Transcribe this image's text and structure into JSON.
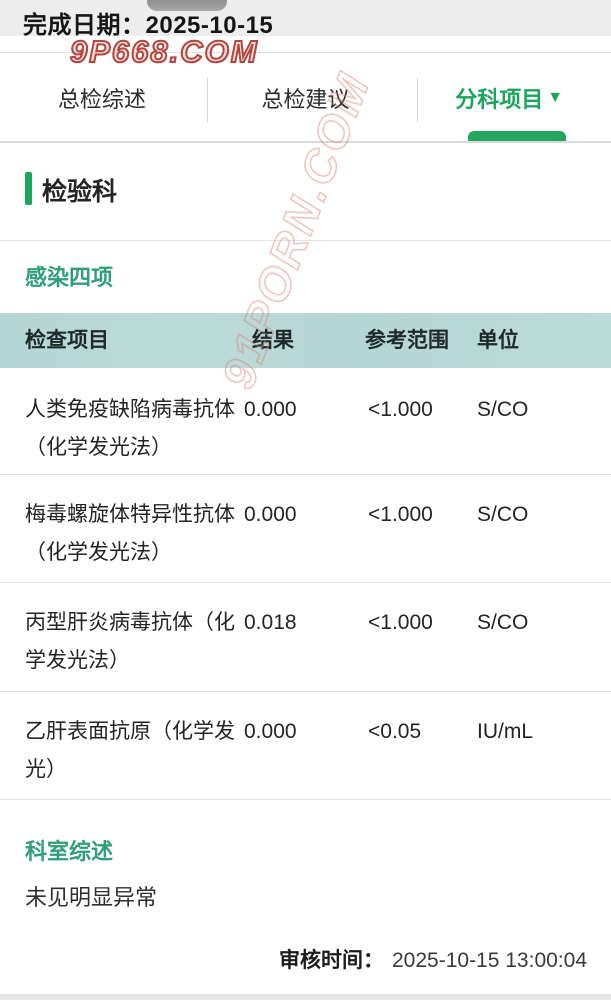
{
  "topbar": {
    "label": "完成日期：",
    "date": "2025-10-15"
  },
  "watermarks": {
    "top": "9P668.COM",
    "diagonal": "91PORN.COM"
  },
  "tabs": [
    {
      "label": "总检综述",
      "active": false
    },
    {
      "label": "总检建议",
      "active": false
    },
    {
      "label": "分科项目",
      "active": true,
      "caret": "▼"
    }
  ],
  "department": {
    "title": "检验科"
  },
  "group": {
    "title": "感染四项"
  },
  "table": {
    "headers": [
      "检查项目",
      "结果",
      "参考范围",
      "单位"
    ],
    "rows": [
      {
        "name": "人类免疫缺陷病毒抗体（化学发光法）",
        "result": "0.000",
        "range": "<1.000",
        "unit": "S/CO"
      },
      {
        "name": "梅毒螺旋体特异性抗体（化学发光法）",
        "result": "0.000",
        "range": "<1.000",
        "unit": "S/CO"
      },
      {
        "name": "丙型肝炎病毒抗体（化学发光法）",
        "result": "0.018",
        "range": "<1.000",
        "unit": "S/CO"
      },
      {
        "name": "乙肝表面抗原（化学发光）",
        "result": "0.000",
        "range": "<0.05",
        "unit": "IU/mL"
      }
    ]
  },
  "summary": {
    "title": "科室综述",
    "text": "未见明显异常"
  },
  "footer": {
    "label": "审核时间：",
    "value": "2025-10-15 13:00:04"
  },
  "colors": {
    "accent_green": "#1ba65b",
    "section_green": "#2f9f7b",
    "table_header_bg": "#b7d8d6",
    "watermark_red": "#b2453d",
    "topbar_bg": "#ededed"
  }
}
